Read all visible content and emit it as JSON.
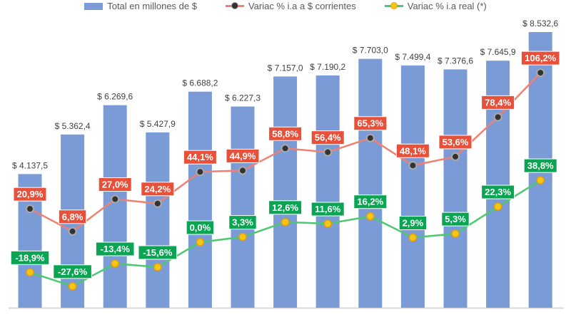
{
  "chart_data": {
    "type": "bar+line",
    "legend_position": "top",
    "grid": false,
    "ylim": [
      0,
      8532.6
    ],
    "y2lim": [
      -30,
      110
    ],
    "series": [
      {
        "name": "Total en millones de $",
        "type": "bar",
        "color": "#7B9BD6",
        "values": [
          4137.5,
          5362.4,
          6269.6,
          5427.9,
          6688.2,
          6227.3,
          7157.0,
          7190.2,
          7703.0,
          7499.4,
          7376.6,
          7645.9,
          8532.6
        ],
        "labels": [
          "$ 4.137,5",
          "$ 5.362,4",
          "$ 6.269,6",
          "$ 5.427,9",
          "$ 6.688,2",
          "$ 6.227,3",
          "$ 7.157,0",
          "$ 7.190,2",
          "$ 7.703,0",
          "$ 7.499,4",
          "$ 7.376,6",
          "$ 7.645,9",
          "$ 8.532,6"
        ]
      },
      {
        "name": "Variac % i.a a $ corrientes",
        "type": "line",
        "color": "#F08070",
        "label_color": "#E8503A",
        "values": [
          20.9,
          6.8,
          27.0,
          24.2,
          44.1,
          44.9,
          58.8,
          56.4,
          65.3,
          48.1,
          53.6,
          78.4,
          106.2
        ],
        "labels": [
          "20,9%",
          "6,8%",
          "27,0%",
          "24,2%",
          "44,1%",
          "44,9%",
          "58,8%",
          "56,4%",
          "65,3%",
          "48,1%",
          "53,6%",
          "78,4%",
          "106,2%"
        ]
      },
      {
        "name": "Variac % i.a real (*)",
        "type": "line",
        "color": "#4CC870",
        "label_color": "#0AA552",
        "values": [
          -18.9,
          -27.6,
          -13.4,
          -15.6,
          0.0,
          3.3,
          12.6,
          11.6,
          16.2,
          2.9,
          5.3,
          22.3,
          38.8
        ],
        "labels": [
          "-18,9%",
          "-27,6%",
          "-13,4%",
          "-15,6%",
          "0,0%",
          "3,3%",
          "12,6%",
          "11,6%",
          "16,2%",
          "2,9%",
          "5,3%",
          "22,3%",
          "38,8%"
        ]
      }
    ]
  }
}
